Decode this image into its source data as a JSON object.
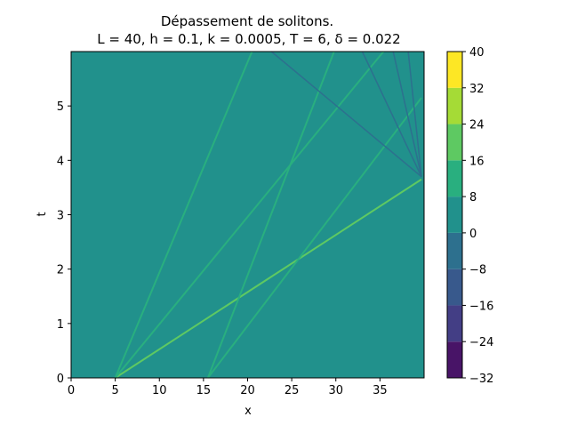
{
  "chart_data": {
    "type": "heatmap",
    "subtype": "filled-contour",
    "title": "Dépassement de solitons.",
    "subtitle": "L = 40, h = 0.1, k = 0.0005, T = 6, δ = 0.022",
    "xlabel": "x",
    "ylabel": "t",
    "xlim": [
      0,
      40
    ],
    "ylim": [
      0,
      6
    ],
    "xticks": [
      "0",
      "5",
      "10",
      "15",
      "20",
      "25",
      "30",
      "35"
    ],
    "yticks": [
      "0",
      "1",
      "2",
      "3",
      "4",
      "5"
    ],
    "background_value": 4,
    "colorbar": {
      "levels": [
        -32,
        -24,
        -16,
        -8,
        0,
        8,
        16,
        24,
        32,
        40
      ],
      "tick_labels": [
        "−32",
        "−24",
        "−16",
        "−8",
        "0",
        "8",
        "16",
        "24",
        "32",
        "40"
      ],
      "colors": [
        "#440154",
        "#46327e",
        "#365c8d",
        "#277f8e",
        "#1fa187",
        "#4ac16d",
        "#a0da39",
        "#fde725"
      ],
      "band_colors": [
        "#481467",
        "#433e85",
        "#38598c",
        "#2d708e",
        "#21918c",
        "#29af7f",
        "#5ec962",
        "#a5db36",
        "#fde725"
      ]
    },
    "features": [
      {
        "kind": "soliton",
        "level": "16..24",
        "x0": 5.0,
        "t0": 0.0,
        "x1": 39.7,
        "t1": 3.65
      },
      {
        "kind": "soliton",
        "level": "8..16",
        "x0": 5.0,
        "t0": 0.0,
        "x1": 35.4,
        "t1": 6.0
      },
      {
        "kind": "soliton",
        "level": "8..16",
        "x0": 15.5,
        "t0": 0.0,
        "x1": 39.7,
        "t1": 5.15
      },
      {
        "kind": "soliton",
        "level": "8..16",
        "x0": 5.0,
        "t0": 0.0,
        "x1": 20.5,
        "t1": 6.0
      },
      {
        "kind": "soliton",
        "level": "8..16",
        "x0": 15.5,
        "t0": 0.0,
        "x1": 29.8,
        "t1": 6.0
      },
      {
        "kind": "radiation",
        "level": "-8..0",
        "x0": 39.7,
        "t0": 3.7,
        "x1": 33.0,
        "t1": 6.0
      },
      {
        "kind": "radiation",
        "level": "-8..0",
        "x0": 39.7,
        "t0": 3.7,
        "x1": 22.7,
        "t1": 6.0
      },
      {
        "kind": "radiation",
        "level": "-8..0",
        "x0": 39.7,
        "t0": 3.7,
        "x1": 36.5,
        "t1": 6.0
      },
      {
        "kind": "radiation",
        "level": "-8..0",
        "x0": 39.7,
        "t0": 3.7,
        "x1": 38.2,
        "t1": 6.0
      }
    ]
  }
}
